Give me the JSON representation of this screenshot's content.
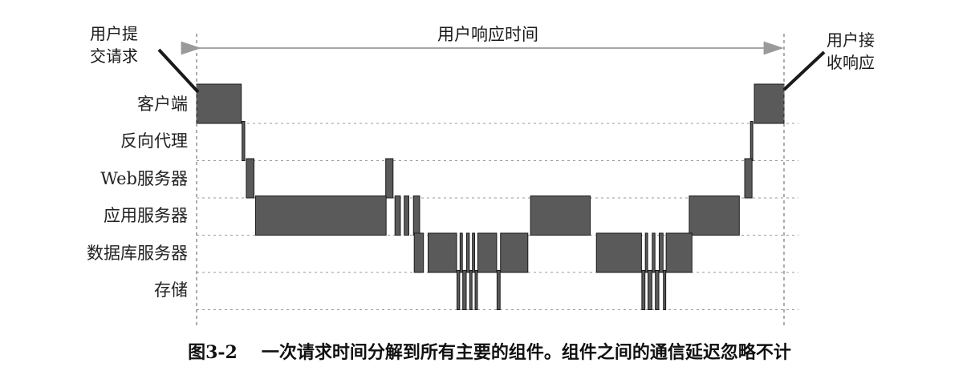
{
  "caption": {
    "figure_number": "图3-2",
    "text": "一次请求时间分解到所有主要的组件。组件之间的通信延迟忽略不计"
  },
  "annotations": {
    "request_label": [
      "用户提",
      "交请求"
    ],
    "response_label": [
      "用户接",
      "收响应"
    ],
    "span_label": "用户响应时间"
  },
  "lanes": [
    {
      "label": "客户端",
      "intervals": [
        [
          0,
          11.6
        ],
        [
          144.8,
          152.5
        ]
      ]
    },
    {
      "label": "反向代理",
      "intervals": [
        [
          11.8,
          12.5
        ],
        [
          143.8,
          144.4
        ]
      ]
    },
    {
      "label": "Web服务器",
      "intervals": [
        [
          12.9,
          14.9
        ],
        [
          49.1,
          51.0
        ],
        [
          142.3,
          144.2
        ]
      ]
    },
    {
      "label": "应用服务器",
      "intervals": [
        [
          15.3,
          49.2
        ],
        [
          51.5,
          52.9
        ],
        [
          53.9,
          55.1
        ],
        [
          56.3,
          57.9
        ],
        [
          86.7,
          102.2
        ],
        [
          127.9,
          140.9
        ]
      ]
    },
    {
      "label": "数据库服务器",
      "intervals": [
        [
          56.5,
          58.9
        ],
        [
          60.1,
          67.5
        ],
        [
          68.4,
          69.0
        ],
        [
          70.1,
          70.8
        ],
        [
          71.6,
          72.2
        ],
        [
          73.0,
          77.9
        ],
        [
          78.9,
          86.0
        ],
        [
          103.8,
          115.5
        ],
        [
          116.5,
          117.1
        ],
        [
          118.3,
          119.0
        ],
        [
          120.1,
          121.1
        ],
        [
          121.9,
          128.6
        ]
      ]
    },
    {
      "label": "存储",
      "intervals": [
        [
          67.6,
          68.3
        ],
        [
          69.1,
          70.0
        ],
        [
          70.9,
          71.5
        ],
        [
          72.3,
          72.9
        ],
        [
          78.0,
          78.8
        ],
        [
          115.6,
          116.4
        ],
        [
          117.2,
          118.2
        ],
        [
          119.1,
          120.0
        ],
        [
          121.2,
          121.8
        ]
      ]
    }
  ],
  "colors": {
    "bar_fill": "#5a5a5a",
    "bar_stroke": "#1a1a1a",
    "gridline": "#9a9a9a",
    "arrow": "#888888",
    "text": "#1a1a1a"
  }
}
